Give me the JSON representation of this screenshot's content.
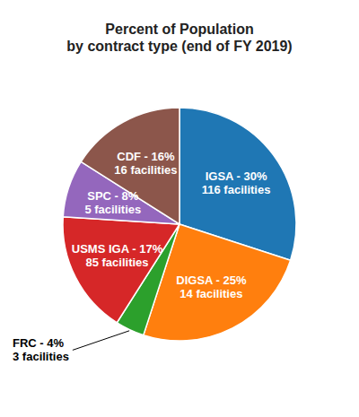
{
  "chart_data": {
    "type": "pie",
    "title": "Percent of Population\nby contract type (end of FY 2019)",
    "categories": [
      "IGSA - 30%\n116 facilities",
      "DIGSA - 25%\n14 facilities",
      "FRC - 4%\n3 facilities",
      "USMS IGA - 17%\n85 facilities",
      "SPC - 8%\n5 facilities",
      "CDF - 16%\n16 facilities"
    ],
    "values": [
      30,
      25,
      4,
      17,
      8,
      16
    ]
  }
}
